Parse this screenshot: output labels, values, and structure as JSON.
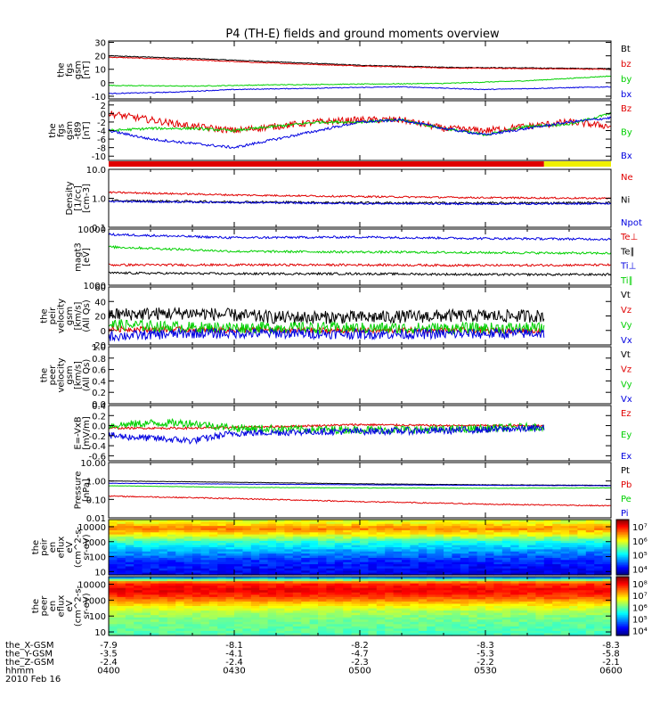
{
  "title": "P4 (TH-E) fields and ground moments overview",
  "colors": {
    "black": "#000000",
    "red": "#e00000",
    "green": "#00d000",
    "blue": "#0000e0",
    "yellow": "#f0f000"
  },
  "chart_data": [
    {
      "type": "line",
      "panel": "fgs_gsm",
      "ylabel": [
        "the",
        "fgs",
        "gsm",
        "[nT]"
      ],
      "ylim": [
        -12,
        31
      ],
      "yticks": [
        "30",
        "20",
        "10",
        "0",
        "-10"
      ],
      "ytick_values": [
        30,
        20,
        10,
        0,
        -10
      ],
      "xlim": [
        0,
        120
      ],
      "series": [
        {
          "name": "Bt",
          "color": "black",
          "noise": 0.3,
          "x": [
            0,
            20,
            40,
            60,
            80,
            100,
            120
          ],
          "y": [
            20,
            18,
            15.5,
            13,
            11.5,
            11,
            10.5
          ]
        },
        {
          "name": "bz",
          "color": "red",
          "noise": 0.3,
          "x": [
            0,
            20,
            40,
            60,
            80,
            100,
            120
          ],
          "y": [
            19,
            17,
            14.5,
            12.5,
            11,
            10.5,
            10
          ]
        },
        {
          "name": "by",
          "color": "green",
          "noise": 0.3,
          "x": [
            0,
            20,
            40,
            60,
            80,
            100,
            120
          ],
          "y": [
            -2,
            -2.5,
            -1.5,
            -1,
            -0.5,
            1.5,
            5
          ]
        },
        {
          "name": "bx",
          "color": "blue",
          "noise": 0.3,
          "x": [
            0,
            15,
            30,
            50,
            70,
            90,
            120
          ],
          "y": [
            -8,
            -7,
            -5,
            -4,
            -3,
            -5,
            -3
          ]
        }
      ]
    },
    {
      "type": "line",
      "panel": "fgs_gsm_dt",
      "ylabel": [
        "the",
        "fgs",
        "gsm",
        "-t89",
        "[nT]"
      ],
      "ylim": [
        -11,
        3
      ],
      "yticks": [
        "2",
        "0",
        "-2",
        "-4",
        "-6",
        "-8",
        "-10"
      ],
      "ytick_values": [
        2,
        0,
        -2,
        -4,
        -6,
        -8,
        -10
      ],
      "xlim": [
        0,
        120
      ],
      "series": [
        {
          "name": "Bz",
          "color": "red",
          "noise": 0.8,
          "x": [
            0,
            10,
            20,
            30,
            40,
            50,
            60,
            70,
            80,
            90,
            100,
            110,
            120
          ],
          "y": [
            0,
            -1.5,
            -3,
            -4,
            -3,
            -2,
            -1.5,
            -1.5,
            -3.5,
            -4,
            -3,
            -2,
            -3
          ]
        },
        {
          "name": "By",
          "color": "green",
          "noise": 0.3,
          "x": [
            0,
            10,
            20,
            30,
            40,
            50,
            60,
            70,
            80,
            90,
            100,
            110,
            120
          ],
          "y": [
            -4,
            -3.5,
            -3.5,
            -4,
            -3,
            -2,
            -2,
            -1.5,
            -3.5,
            -5,
            -3,
            -2.5,
            0
          ]
        },
        {
          "name": "Bx",
          "color": "blue",
          "noise": 0.3,
          "x": [
            0,
            10,
            20,
            30,
            40,
            50,
            60,
            70,
            80,
            90,
            100,
            110,
            120
          ],
          "y": [
            -4,
            -6,
            -7,
            -8,
            -6,
            -4,
            -2,
            -1.5,
            -3.5,
            -5,
            -3.5,
            -2,
            -1
          ]
        }
      ]
    },
    {
      "type": "line",
      "panel": "density",
      "ylabel": [
        "Density",
        "[1/cc]",
        "[cm-3]"
      ],
      "ylim": [
        0.1,
        10
      ],
      "yscale": "log",
      "yticks": [
        "10.0",
        "1.0",
        "0.1"
      ],
      "ytick_values": [
        10,
        1,
        0.1
      ],
      "xlim": [
        0,
        120
      ],
      "series": [
        {
          "name": "Ne",
          "color": "red",
          "noise": 0.03,
          "x": [
            0,
            30,
            60,
            90,
            120
          ],
          "y": [
            1.6,
            1.3,
            1.15,
            1.05,
            1.0
          ]
        },
        {
          "name": "Ni",
          "color": "black",
          "noise": 0.04,
          "x": [
            0,
            30,
            60,
            90,
            120
          ],
          "y": [
            0.82,
            0.75,
            0.7,
            0.68,
            0.7
          ]
        },
        {
          "name": "Npot",
          "color": "blue",
          "noise": 0.03,
          "x": [
            0,
            30,
            60,
            90,
            120
          ],
          "y": [
            0.78,
            0.72,
            0.66,
            0.64,
            0.66
          ]
        }
      ]
    },
    {
      "type": "line",
      "panel": "magt3",
      "ylabel": [
        "magt3",
        "[eV]"
      ],
      "ylim": [
        1000,
        10000
      ],
      "yscale": "log",
      "yticks": [
        "10000",
        "1000"
      ],
      "ytick_values": [
        10000,
        1000
      ],
      "xlim": [
        0,
        120
      ],
      "series": [
        {
          "name": "Te⊥",
          "color": "red",
          "noise": 0.02,
          "x": [
            0,
            30,
            60,
            90,
            120
          ],
          "y": [
            2300,
            2300,
            2300,
            2250,
            2300
          ]
        },
        {
          "name": "Te∥",
          "color": "black",
          "noise": 0.02,
          "x": [
            0,
            30,
            60,
            90,
            120
          ],
          "y": [
            1650,
            1600,
            1600,
            1550,
            1550
          ]
        },
        {
          "name": "Ti⊥",
          "color": "blue",
          "noise": 0.02,
          "x": [
            0,
            30,
            60,
            90,
            120
          ],
          "y": [
            8000,
            7000,
            7200,
            6800,
            6600
          ]
        },
        {
          "name": "Ti∥",
          "color": "green",
          "noise": 0.02,
          "x": [
            0,
            30,
            60,
            90,
            120
          ],
          "y": [
            4800,
            4000,
            3900,
            3800,
            3700
          ]
        }
      ]
    },
    {
      "type": "line",
      "panel": "peir_velocity",
      "ylabel": [
        "the",
        "peir",
        "velocity",
        "gsm",
        "[km/s]",
        "(All Qs)"
      ],
      "ylim": [
        -20,
        60
      ],
      "yticks": [
        "60",
        "40",
        "20",
        "0",
        "-20"
      ],
      "ytick_values": [
        60,
        40,
        20,
        0,
        -20
      ],
      "xlim": [
        0,
        120
      ],
      "data_end": 104,
      "series": [
        {
          "name": "Vt",
          "color": "black",
          "noise": 9,
          "x": [
            0,
            20,
            40,
            60,
            80,
            104
          ],
          "y": [
            22,
            24,
            18,
            18,
            20,
            20
          ]
        },
        {
          "name": "Vz",
          "color": "red",
          "noise": 4,
          "x": [
            0,
            20,
            40,
            60,
            80,
            104
          ],
          "y": [
            2,
            1,
            0,
            0,
            0,
            0
          ]
        },
        {
          "name": "Vy",
          "color": "green",
          "noise": 8,
          "x": [
            0,
            20,
            40,
            60,
            80,
            104
          ],
          "y": [
            8,
            4,
            4,
            3,
            3,
            3
          ]
        },
        {
          "name": "Vx",
          "color": "blue",
          "noise": 7,
          "x": [
            0,
            20,
            40,
            60,
            80,
            104
          ],
          "y": [
            -8,
            -4,
            -4,
            -5,
            -5,
            -4
          ]
        }
      ]
    },
    {
      "type": "line",
      "panel": "peer_velocity",
      "ylabel": [
        "the",
        "peer",
        "velocity",
        "gsm",
        "[km/s]",
        "(All Qs)"
      ],
      "ylim": [
        0,
        1.0
      ],
      "yticks": [
        "1.0",
        "0.8",
        "0.6",
        "0.4",
        "0.2",
        "0.0"
      ],
      "ytick_values": [
        1.0,
        0.8,
        0.6,
        0.4,
        0.2,
        0.0
      ],
      "xlim": [
        0,
        120
      ],
      "series": [
        {
          "name": "Vt",
          "color": "black",
          "x": [],
          "y": []
        },
        {
          "name": "Vz",
          "color": "red",
          "x": [],
          "y": []
        },
        {
          "name": "Vy",
          "color": "green",
          "x": [],
          "y": []
        },
        {
          "name": "Vx",
          "color": "blue",
          "x": [],
          "y": []
        }
      ]
    },
    {
      "type": "line",
      "panel": "e_vxb",
      "ylabel": [
        "E=-VxB",
        "[mV/m]"
      ],
      "ylim": [
        -0.7,
        0.4
      ],
      "yticks": [
        "0.4",
        "0.2",
        "0.0",
        "-0.2",
        "-0.4",
        "-0.6"
      ],
      "ytick_values": [
        0.4,
        0.2,
        0.0,
        -0.2,
        -0.4,
        -0.6
      ],
      "xlim": [
        0,
        120
      ],
      "data_end": 104,
      "series": [
        {
          "name": "Ez",
          "color": "red",
          "noise": 0.02,
          "x": [
            0,
            20,
            40,
            60,
            80,
            104
          ],
          "y": [
            -0.05,
            -0.05,
            -0.02,
            0.02,
            0.0,
            0.0
          ]
        },
        {
          "name": "Ey",
          "color": "green",
          "noise": 0.08,
          "x": [
            0,
            10,
            20,
            30,
            50,
            80,
            104
          ],
          "y": [
            0.0,
            0.05,
            0.05,
            -0.05,
            -0.08,
            -0.08,
            -0.02
          ]
        },
        {
          "name": "Ex",
          "color": "blue",
          "noise": 0.07,
          "x": [
            0,
            10,
            20,
            30,
            50,
            80,
            104
          ],
          "y": [
            -0.2,
            -0.25,
            -0.3,
            -0.15,
            -0.12,
            -0.1,
            -0.05
          ]
        }
      ]
    },
    {
      "type": "line",
      "panel": "pressure",
      "ylabel": [
        "Pressure",
        "[nPa]"
      ],
      "ylim": [
        0.01,
        10
      ],
      "yscale": "log",
      "yticks": [
        "10.00",
        "1.00",
        "0.10",
        "0.01"
      ],
      "ytick_values": [
        10,
        1,
        0.1,
        0.01
      ],
      "xlim": [
        0,
        120
      ],
      "series": [
        {
          "name": "Pt",
          "color": "black",
          "noise": 0.01,
          "x": [
            0,
            30,
            60,
            90,
            120
          ],
          "y": [
            1.0,
            0.85,
            0.7,
            0.62,
            0.58
          ]
        },
        {
          "name": "Pb",
          "color": "red",
          "noise": 0.03,
          "x": [
            0,
            30,
            60,
            90,
            120
          ],
          "y": [
            0.15,
            0.11,
            0.075,
            0.055,
            0.045
          ]
        },
        {
          "name": "Pe",
          "color": "green",
          "noise": 0.01,
          "x": [
            0,
            30,
            60,
            90,
            120
          ],
          "y": [
            0.55,
            0.45,
            0.42,
            0.4,
            0.42
          ]
        },
        {
          "name": "Pi",
          "color": "blue",
          "noise": 0.01,
          "x": [
            0,
            30,
            60,
            90,
            120
          ],
          "y": [
            0.75,
            0.68,
            0.62,
            0.58,
            0.55
          ]
        }
      ]
    },
    {
      "type": "heatmap",
      "panel": "peir_en_eflux",
      "ylabel": [
        "the",
        "peir",
        "en",
        "eflux",
        "eV",
        "(cm^2-s-",
        "sr-eV)"
      ],
      "ylim": [
        6,
        30000
      ],
      "yscale": "log",
      "yticks": [
        "10000",
        "1000",
        "100",
        "10"
      ],
      "ytick_values": [
        10000,
        1000,
        100,
        10
      ],
      "colorbar": {
        "ticks": [
          "10⁷",
          "10⁶",
          "10⁵",
          "10⁴"
        ],
        "log_range": [
          3.6,
          7.5
        ],
        "tick_values": [
          7,
          6,
          5,
          4
        ]
      },
      "profile": [
        [
          10,
          4.1
        ],
        [
          50,
          4.3
        ],
        [
          200,
          4.7
        ],
        [
          1000,
          5.3
        ],
        [
          3000,
          6.1
        ],
        [
          8000,
          6.6
        ],
        [
          20000,
          6.0
        ]
      ]
    },
    {
      "type": "heatmap",
      "panel": "peer_en_eflux",
      "ylabel": [
        "the",
        "peer",
        "en",
        "eflux",
        "eV",
        "(cm^2-s-",
        "sr-eV)"
      ],
      "ylim": [
        6,
        30000
      ],
      "yscale": "log",
      "yticks": [
        "10000",
        "1000",
        "100",
        "10"
      ],
      "ytick_values": [
        10000,
        1000,
        100,
        10
      ],
      "colorbar": {
        "ticks": [
          "10⁸",
          "10⁷",
          "10⁶",
          "10⁵",
          "10⁴"
        ],
        "log_range": [
          3.6,
          8.6
        ],
        "tick_values": [
          8,
          7,
          6,
          5,
          4
        ]
      },
      "profile": [
        [
          8,
          5.9
        ],
        [
          20,
          6.0
        ],
        [
          60,
          6.1
        ],
        [
          200,
          6.4
        ],
        [
          600,
          7.0
        ],
        [
          1500,
          7.7
        ],
        [
          4000,
          8.1
        ],
        [
          12000,
          7.8
        ],
        [
          25000,
          5.0
        ]
      ]
    }
  ],
  "mode_bar": {
    "segments": [
      {
        "from": 0,
        "to": 104,
        "color": "red"
      },
      {
        "from": 104,
        "to": 120,
        "color": "yellow"
      }
    ]
  },
  "x_axis": {
    "tick_positions": [
      0,
      30,
      60,
      90,
      120
    ],
    "rows": [
      {
        "label": "the_X-GSM",
        "values": [
          "-7.9",
          "-8.1",
          "-8.2",
          "-8.3",
          "-8.3"
        ]
      },
      {
        "label": "the_Y-GSM",
        "values": [
          "-3.5",
          "-4.1",
          "-4.7",
          "-5.3",
          "-5.8"
        ]
      },
      {
        "label": "the_Z-GSM",
        "values": [
          "-2.4",
          "-2.4",
          "-2.3",
          "-2.2",
          "-2.1"
        ]
      },
      {
        "label": "hhmm",
        "values": [
          "0400",
          "0430",
          "0500",
          "0530",
          "0600"
        ]
      }
    ],
    "date": "2010 Feb 16"
  }
}
